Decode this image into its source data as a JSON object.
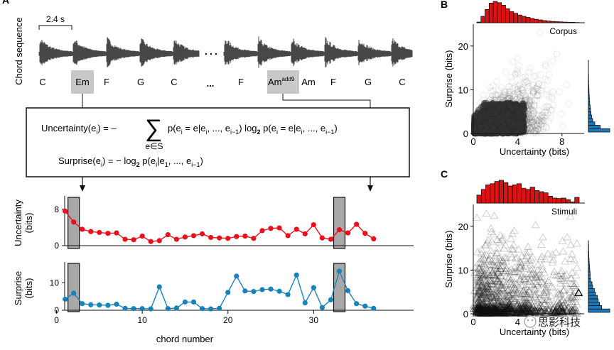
{
  "panels": {
    "a": "A",
    "b": "B",
    "c": "C"
  },
  "sequence": {
    "ylabel": "Chord sequence",
    "scale_label": "2.4 s",
    "chords": [
      "C",
      "Em",
      "F",
      "G",
      "C",
      "...",
      "F",
      "Am",
      "Am",
      "F",
      "G",
      "C"
    ],
    "superscript": "add9",
    "highlighted": [
      "Em",
      "Amadd9"
    ]
  },
  "formulas": {
    "uncertainty_lhs": "Uncertainty(e",
    "uncertainty_rhs": "p(e = e|e, ..., e) log p(e = e|e, ..., e)",
    "sum_index": "e∈S",
    "surprise_lhs": "Surprise(e",
    "surprise_rhs": ") = − log p(e|e, ..., e)"
  },
  "chart_data": [
    {
      "type": "line",
      "panel": "uncertainty",
      "ylabel": "Uncertainty\n(bits)",
      "color": "#e8111a",
      "x": [
        1,
        2,
        3,
        4,
        5,
        6,
        7,
        8,
        9,
        10,
        11,
        12,
        13,
        14,
        15,
        16,
        17,
        18,
        19,
        20,
        21,
        22,
        23,
        24,
        25,
        26,
        27,
        28,
        29,
        30,
        31,
        32,
        33,
        34,
        35,
        36,
        37
      ],
      "series": [
        {
          "values": [
            7.6,
            5.2,
            3.6,
            3.1,
            2.9,
            2.7,
            2.8,
            1.4,
            1.3,
            2.1,
            0.9,
            1.1,
            2.4,
            1.4,
            1.9,
            2.2,
            2.6,
            1.8,
            1.7,
            1.6,
            2.0,
            2.1,
            1.6,
            3.3,
            3.8,
            3.9,
            2.2,
            3.6,
            2.6,
            4.6,
            1.7,
            1.4,
            3.5,
            2.8,
            4.7,
            2.7,
            1.5
          ]
        }
      ],
      "ylim": [
        0,
        10
      ],
      "yticks": [
        0,
        8
      ],
      "highlight_x": [
        2,
        33
      ]
    },
    {
      "type": "line",
      "panel": "surprise",
      "ylabel": "Surprise\n(bits)",
      "color": "#1883bb",
      "x": [
        1,
        2,
        3,
        4,
        5,
        6,
        7,
        8,
        9,
        10,
        11,
        12,
        13,
        14,
        15,
        16,
        17,
        18,
        19,
        20,
        21,
        22,
        23,
        24,
        25,
        26,
        27,
        28,
        29,
        30,
        31,
        32,
        33,
        34,
        35,
        36,
        37
      ],
      "series": [
        {
          "values": [
            4.0,
            6.2,
            2.4,
            2.0,
            1.9,
            1.8,
            2.2,
            0.7,
            0.6,
            0.6,
            0.5,
            8.5,
            0.6,
            0.8,
            3.0,
            3.0,
            0.6,
            0.5,
            0.7,
            6.5,
            12.4,
            7.0,
            6.8,
            7.5,
            7.7,
            6.9,
            5.7,
            12.8,
            2.7,
            8.2,
            1.0,
            3.8,
            14.2,
            7.1,
            2.4,
            1.5,
            0.7
          ]
        }
      ],
      "ylim": [
        0,
        16
      ],
      "yticks": [
        0,
        10
      ],
      "xlabel": "chord number",
      "xticks": [
        0,
        10,
        20,
        30
      ],
      "highlight_x": [
        2,
        33
      ]
    },
    {
      "type": "scatter",
      "panel": "corpus",
      "title": "Corpus",
      "xlabel": "Uncertainty (bits)",
      "ylabel": "Surprise (bits)",
      "xlim": [
        0,
        10
      ],
      "ylim": [
        0,
        25
      ],
      "xticks": [
        0,
        4,
        8
      ],
      "yticks": [
        0,
        10,
        20
      ],
      "marker": "circle",
      "top_hist_color": "#dd1111",
      "right_hist_color": "#1a78bb",
      "top_hist": [
        0.03,
        0.3,
        0.62,
        0.92,
        1.0,
        0.94,
        0.82,
        0.66,
        0.52,
        0.44,
        0.36,
        0.3,
        0.25,
        0.2,
        0.16,
        0.13,
        0.1,
        0.08,
        0.06,
        0.05,
        0.04,
        0.03,
        0.02,
        0.02,
        0.01
      ],
      "right_hist": [
        1.0,
        0.55,
        0.3,
        0.2,
        0.15,
        0.12,
        0.1,
        0.08,
        0.06,
        0.05,
        0.04,
        0.03,
        0.025,
        0.02,
        0.015,
        0.01,
        0.01,
        0.005,
        0.005,
        0.005
      ]
    },
    {
      "type": "scatter",
      "panel": "stimuli",
      "title": "Stimuli",
      "xlabel": "Uncertainty (bits)",
      "ylabel": "Surprise (bits)",
      "xlim": [
        0,
        10
      ],
      "ylim": [
        0,
        25
      ],
      "xticks": [
        0,
        4
      ],
      "yticks": [
        0,
        10,
        20
      ],
      "marker": "triangle",
      "top_hist_color": "#dd1111",
      "right_hist_color": "#1a78bb",
      "top_hist": [
        0.35,
        0.6,
        0.8,
        0.85,
        0.95,
        1.0,
        0.9,
        0.75,
        0.8,
        0.85,
        0.65,
        0.6,
        0.7,
        0.55,
        0.5,
        0.45,
        0.3,
        0.22,
        0.2,
        0.22,
        0.15,
        0.05,
        0.25
      ],
      "right_hist": [
        1.0,
        0.62,
        0.52,
        0.46,
        0.42,
        0.33,
        0.28,
        0.2,
        0.17,
        0.1,
        0.08,
        0.08,
        0.06,
        0.05,
        0.04,
        0.03,
        0.02,
        0.02,
        0.01,
        0.01
      ]
    }
  ],
  "watermark": "思影科技"
}
